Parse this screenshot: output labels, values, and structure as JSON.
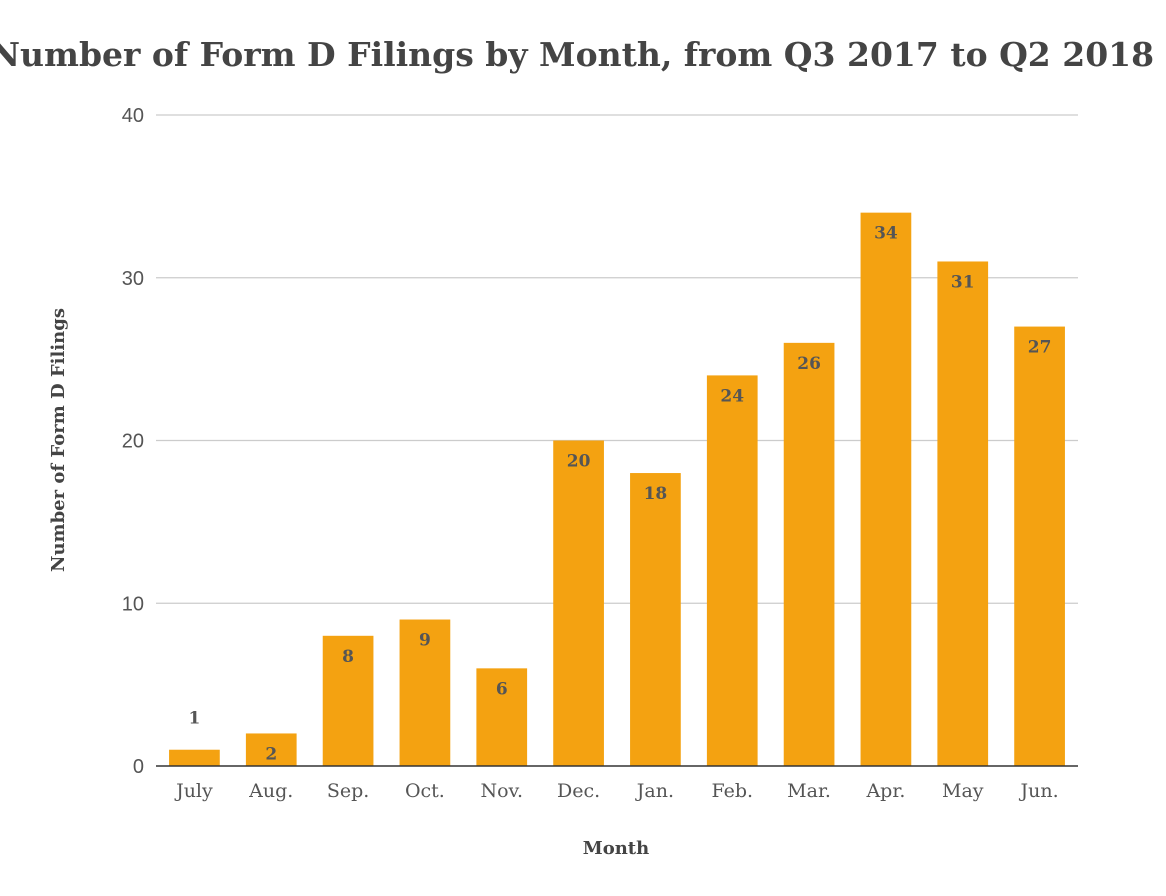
{
  "chart_data": {
    "type": "bar",
    "title": "Number of Form D Filings by Month, from Q3 2017 to Q2 2018",
    "xlabel": "Month",
    "ylabel": "Number of Form D Filings",
    "categories": [
      "July",
      "Aug.",
      "Sep.",
      "Oct.",
      "Nov.",
      "Dec.",
      "Jan.",
      "Feb.",
      "Mar.",
      "Apr.",
      "May",
      "Jun."
    ],
    "values": [
      1,
      2,
      8,
      9,
      6,
      20,
      18,
      24,
      26,
      34,
      31,
      27
    ],
    "ylim": [
      0,
      40
    ],
    "yticks": [
      0,
      10,
      20,
      30,
      40
    ],
    "grid": true,
    "legend": "none",
    "bar_color": "#F4A211",
    "gridline_color": "#CCCCCC",
    "axis_color": "#333333",
    "text_color": "#444444"
  }
}
